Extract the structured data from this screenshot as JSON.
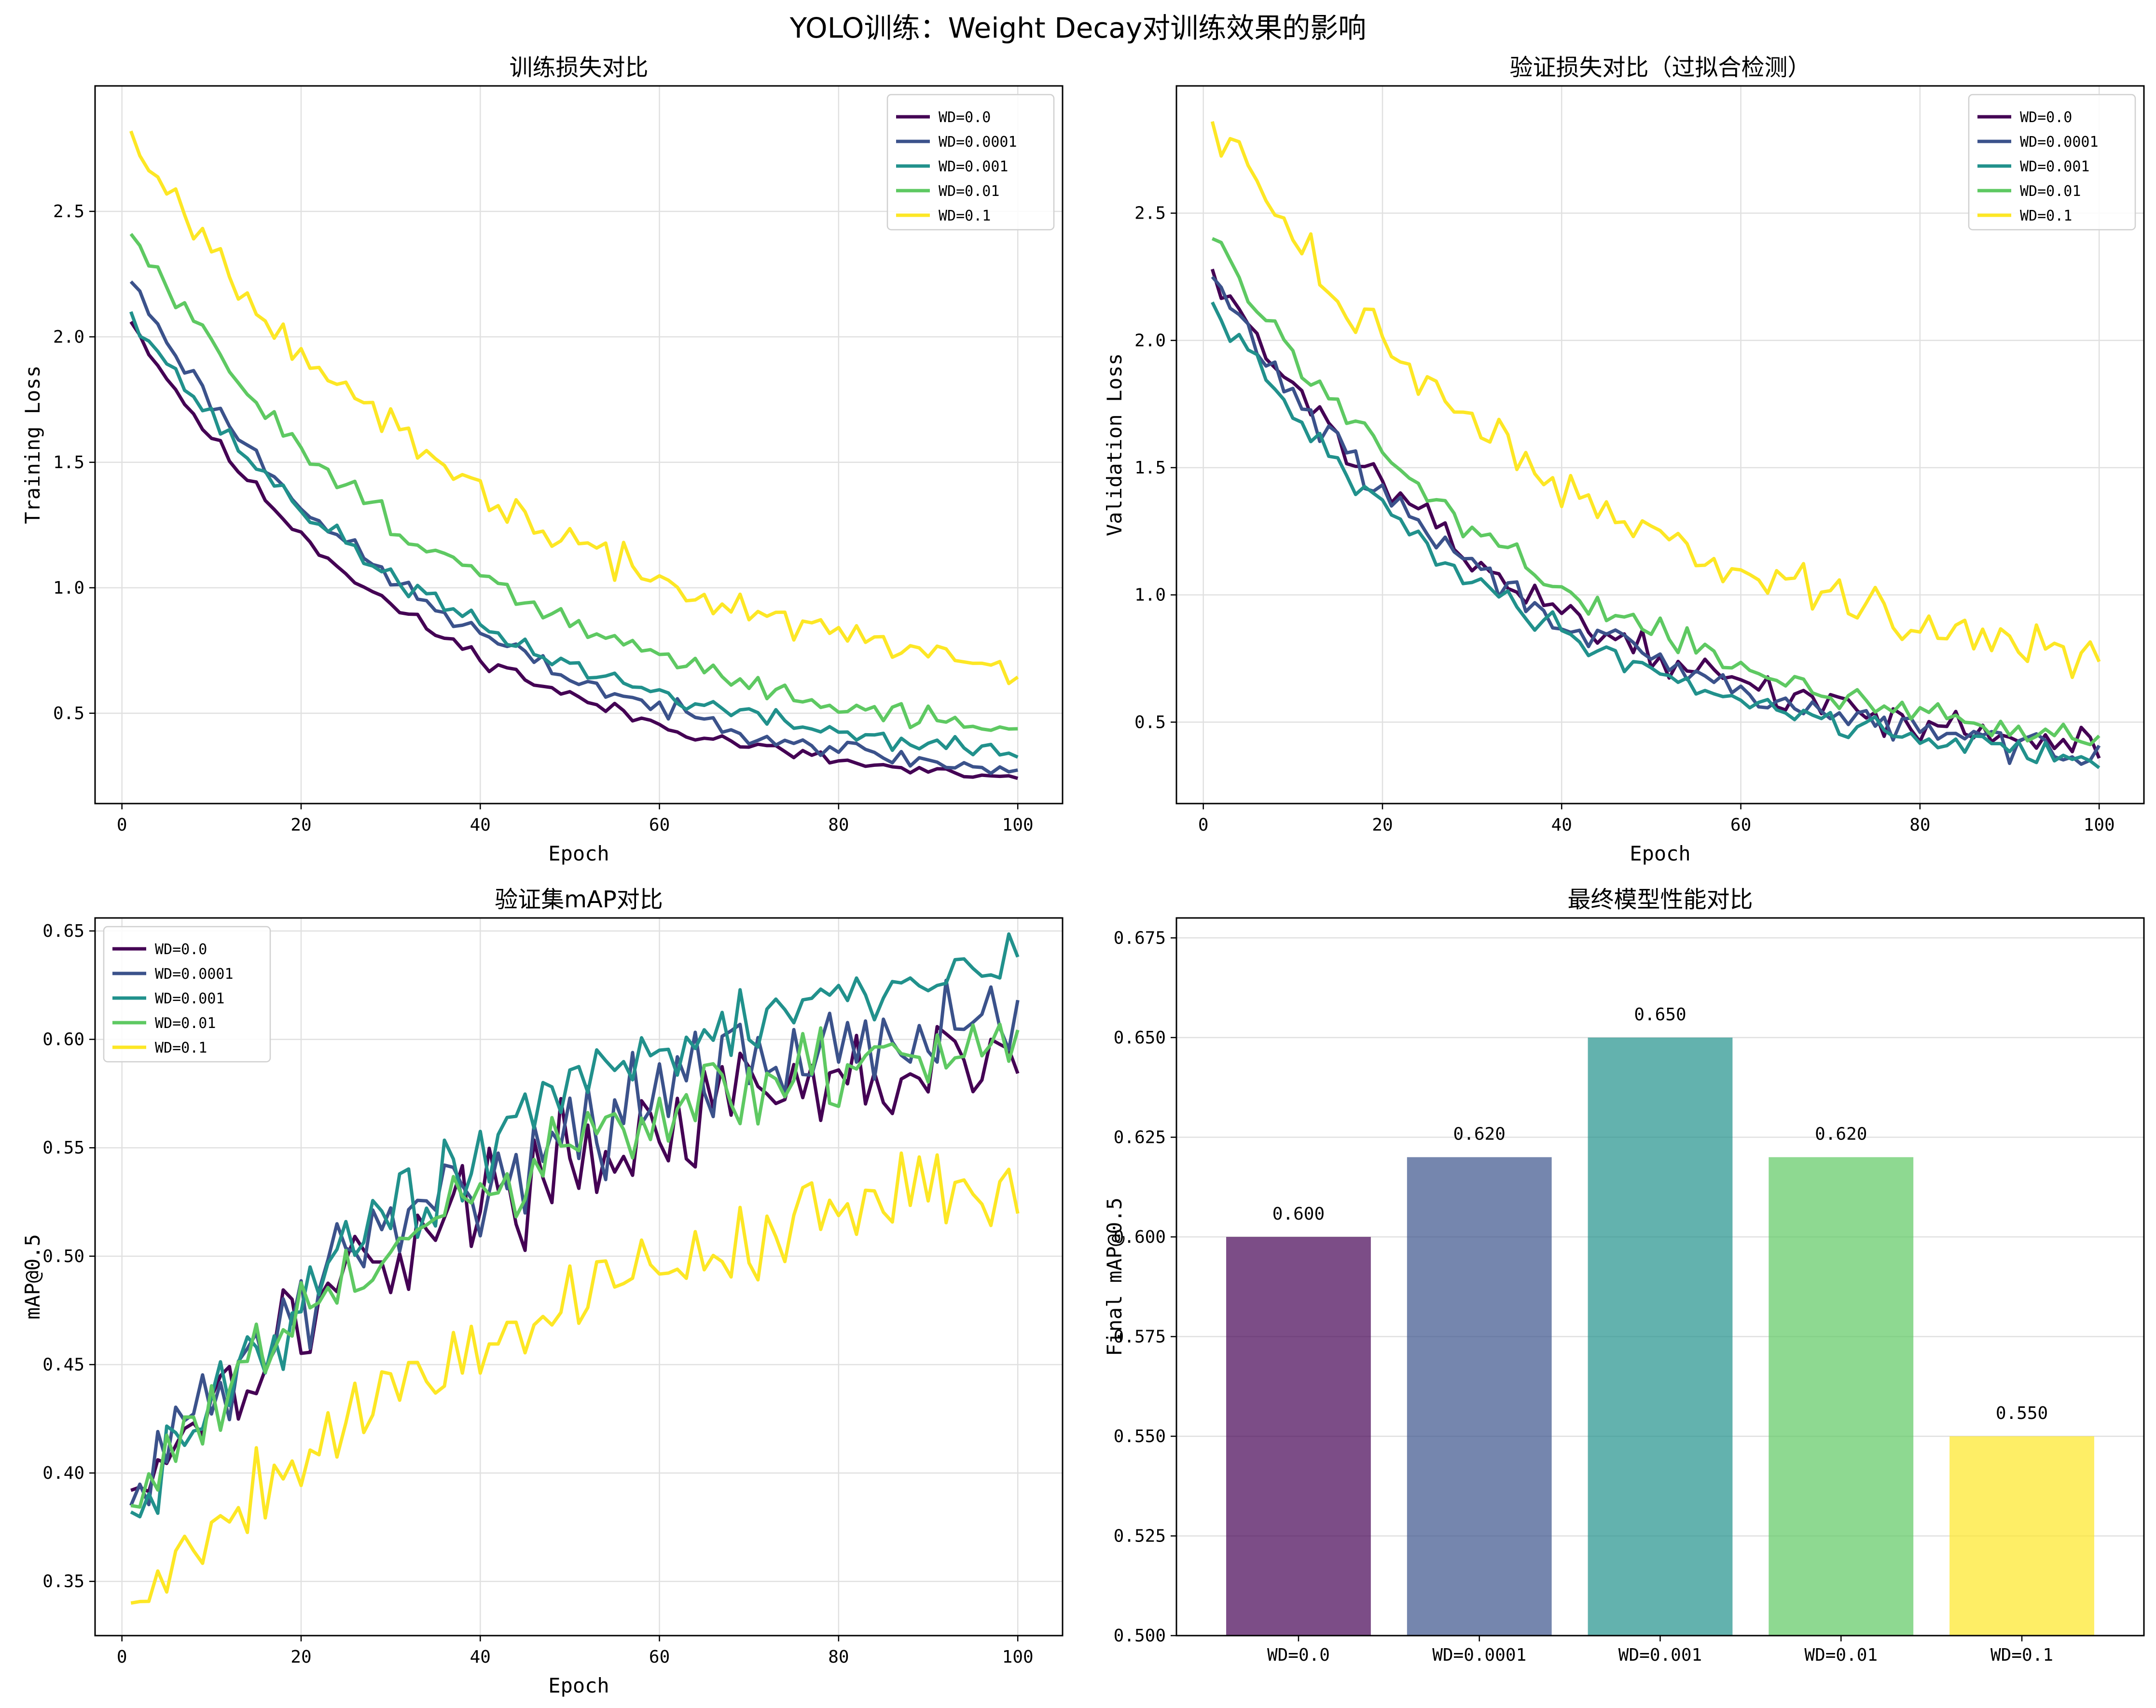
{
  "figure_title": "YOLO训练：Weight Decay对训练效果的影响",
  "chart_data": [
    {
      "id": "train_loss",
      "type": "line",
      "title": "训练损失对比",
      "xlabel": "Epoch",
      "ylabel": "Training Loss",
      "xlim": [
        -3,
        105
      ],
      "ylim": [
        0.14,
        3.0
      ],
      "xticks": [
        0,
        20,
        40,
        60,
        80,
        100
      ],
      "yticks": [
        0.5,
        1.0,
        1.5,
        2.0,
        2.5
      ],
      "ytick_labels": [
        "0.5",
        "1.0",
        "1.5",
        "2.0",
        "2.5"
      ],
      "grid": true,
      "legend": "top-right",
      "series": [
        {
          "name": "WD=0.0",
          "color": "#440154",
          "start": 2.06,
          "end": 0.23,
          "rate": 3.0,
          "noise": 0.015,
          "seed": 11
        },
        {
          "name": "WD=0.0001",
          "color": "#3b528b",
          "start": 2.22,
          "end": 0.27,
          "rate": 2.9,
          "noise": 0.02,
          "seed": 23
        },
        {
          "name": "WD=0.001",
          "color": "#21918c",
          "start": 2.1,
          "end": 0.34,
          "rate": 2.8,
          "noise": 0.02,
          "seed": 37
        },
        {
          "name": "WD=0.01",
          "color": "#5ec962",
          "start": 2.41,
          "end": 0.43,
          "rate": 2.6,
          "noise": 0.025,
          "seed": 51
        },
        {
          "name": "WD=0.1",
          "color": "#fde725",
          "start": 2.82,
          "end": 0.68,
          "rate": 2.4,
          "noise": 0.035,
          "seed": 67
        }
      ]
    },
    {
      "id": "val_loss",
      "type": "line",
      "title": "验证损失对比（过拟合检测）",
      "xlabel": "Epoch",
      "ylabel": "Validation Loss",
      "xlim": [
        -3,
        105
      ],
      "ylim": [
        0.18,
        3.0
      ],
      "xticks": [
        0,
        20,
        40,
        60,
        80,
        100
      ],
      "yticks": [
        0.5,
        1.0,
        1.5,
        2.0,
        2.5
      ],
      "ytick_labels": [
        "0.5",
        "1.0",
        "1.5",
        "2.0",
        "2.5"
      ],
      "grid": true,
      "legend": "top-right",
      "series": [
        {
          "name": "WD=0.0",
          "color": "#440154",
          "start": 2.28,
          "end": 0.41,
          "rate": 2.9,
          "noise": 0.03,
          "seed": 13
        },
        {
          "name": "WD=0.0001",
          "color": "#3b528b",
          "start": 2.25,
          "end": 0.38,
          "rate": 2.9,
          "noise": 0.03,
          "seed": 29
        },
        {
          "name": "WD=0.001",
          "color": "#21918c",
          "start": 2.15,
          "end": 0.36,
          "rate": 2.9,
          "noise": 0.025,
          "seed": 41
        },
        {
          "name": "WD=0.01",
          "color": "#5ec962",
          "start": 2.4,
          "end": 0.43,
          "rate": 2.6,
          "noise": 0.025,
          "seed": 59
        },
        {
          "name": "WD=0.1",
          "color": "#fde725",
          "start": 2.86,
          "end": 0.75,
          "rate": 2.4,
          "noise": 0.045,
          "seed": 73
        }
      ]
    },
    {
      "id": "map",
      "type": "line",
      "title": "验证集mAP对比",
      "xlabel": "Epoch",
      "ylabel": "mAP@0.5",
      "xlim": [
        -3,
        105
      ],
      "ylim": [
        0.325,
        0.656
      ],
      "xticks": [
        0,
        20,
        40,
        60,
        80,
        100
      ],
      "yticks": [
        0.35,
        0.4,
        0.45,
        0.5,
        0.55,
        0.6,
        0.65
      ],
      "ytick_labels": [
        "0.35",
        "0.40",
        "0.45",
        "0.50",
        "0.55",
        "0.60",
        "0.65"
      ],
      "grid": true,
      "legend": "top-left",
      "series": [
        {
          "name": "WD=0.0",
          "color": "#440154",
          "start": 0.392,
          "end": 0.591,
          "rate": 2.4,
          "noise": 0.012,
          "seed": 17
        },
        {
          "name": "WD=0.0001",
          "color": "#3b528b",
          "start": 0.385,
          "end": 0.612,
          "rate": 2.4,
          "noise": 0.012,
          "seed": 31
        },
        {
          "name": "WD=0.001",
          "color": "#21918c",
          "start": 0.382,
          "end": 0.638,
          "rate": 2.2,
          "noise": 0.01,
          "seed": 43
        },
        {
          "name": "WD=0.01",
          "color": "#5ec962",
          "start": 0.385,
          "end": 0.602,
          "rate": 2.2,
          "noise": 0.01,
          "seed": 61
        },
        {
          "name": "WD=0.1",
          "color": "#fde725",
          "start": 0.34,
          "end": 0.535,
          "rate": 1.9,
          "noise": 0.01,
          "seed": 79
        }
      ]
    },
    {
      "id": "final_map",
      "type": "bar",
      "title": "最终模型性能对比",
      "xlabel": "",
      "ylabel": "Final mAP@0.5",
      "ylim": [
        0.5,
        0.68
      ],
      "yticks": [
        0.5,
        0.525,
        0.55,
        0.575,
        0.6,
        0.625,
        0.65,
        0.675
      ],
      "ytick_labels": [
        "0.500",
        "0.525",
        "0.550",
        "0.575",
        "0.600",
        "0.625",
        "0.650",
        "0.675"
      ],
      "grid": true,
      "categories": [
        "WD=0.0",
        "WD=0.0001",
        "WD=0.001",
        "WD=0.01",
        "WD=0.1"
      ],
      "values": [
        0.6,
        0.62,
        0.65,
        0.62,
        0.55
      ],
      "value_labels": [
        "0.600",
        "0.620",
        "0.650",
        "0.620",
        "0.550"
      ],
      "colors": [
        "#440154",
        "#3b528b",
        "#21918c",
        "#5ec962",
        "#fde725"
      ]
    }
  ]
}
